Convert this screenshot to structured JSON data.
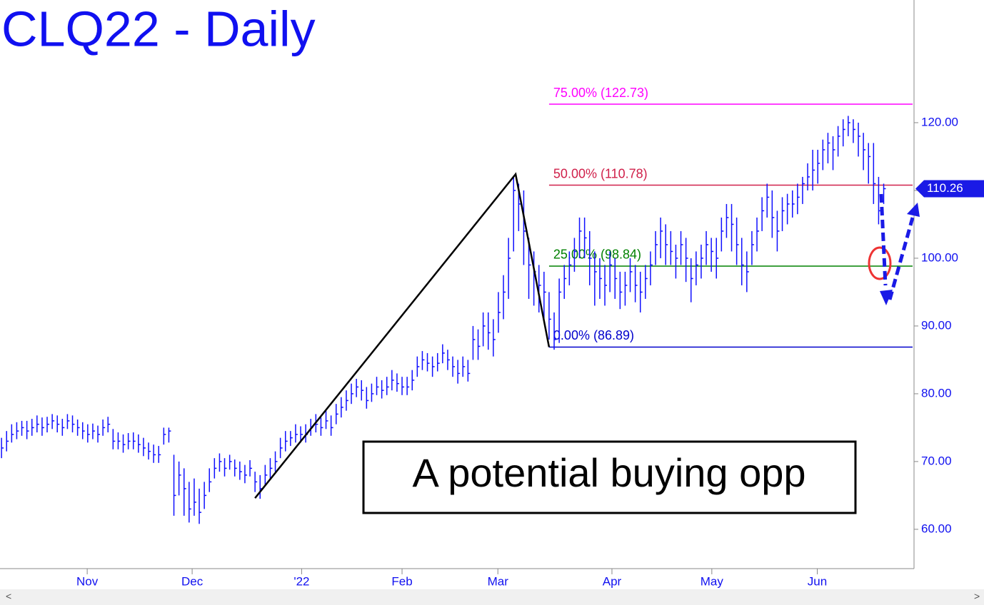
{
  "chart_data": {
    "type": "ohlc",
    "title": "CLQ22 - Daily",
    "annotation": "A potential buying opp",
    "color": "#1010ff",
    "ylim": [
      54.2,
      138.1
    ],
    "yticks": [
      {
        "value": 60,
        "label": "60.00"
      },
      {
        "value": 70,
        "label": "70.00"
      },
      {
        "value": 80,
        "label": "80.00"
      },
      {
        "value": 90,
        "label": "90.00"
      },
      {
        "value": 100,
        "label": "100.00"
      },
      {
        "value": 110,
        "label": "110.00"
      },
      {
        "value": 120,
        "label": "120.00"
      }
    ],
    "xlim": [
      -0.3,
      179.7
    ],
    "xticks": [
      {
        "value": 16.9,
        "label": "Nov"
      },
      {
        "value": 37.6,
        "label": "Dec"
      },
      {
        "value": 59.2,
        "label": "'22"
      },
      {
        "value": 79,
        "label": "Feb"
      },
      {
        "value": 97.9,
        "label": "Mar"
      },
      {
        "value": 120.4,
        "label": "Apr"
      },
      {
        "value": 140.1,
        "label": "May"
      },
      {
        "value": 160.9,
        "label": "Jun"
      }
    ],
    "high": [
      73.5,
      74.5,
      75.5,
      75.8,
      76,
      76,
      76.3,
      76.8,
      76.5,
      76.6,
      77,
      76.8,
      76.3,
      77,
      76.8,
      76.2,
      75.8,
      75.5,
      75.6,
      75.3,
      76.2,
      76.6,
      74.8,
      74.3,
      74,
      74.2,
      74.3,
      74,
      73.5,
      72.8,
      72.5,
      72.3,
      75,
      75,
      71,
      70,
      69,
      67,
      67.5,
      66,
      67,
      69,
      70.5,
      71.2,
      70.5,
      71,
      70.3,
      70,
      69.5,
      70.2,
      68.5,
      68,
      69.5,
      70.5,
      71.5,
      73.5,
      74.5,
      74.5,
      75.5,
      75.2,
      75.5,
      76.3,
      77,
      76.5,
      77.5,
      76.8,
      78.5,
      79.5,
      80.5,
      81.5,
      82.2,
      82,
      81,
      81.5,
      82.5,
      82,
      82.5,
      83.5,
      83,
      82.5,
      82.5,
      83.5,
      85.5,
      86.3,
      86,
      85.5,
      86,
      87.3,
      86.5,
      85.5,
      85,
      85.5,
      85,
      90,
      89.5,
      92,
      92,
      91,
      95,
      97.5,
      103,
      112,
      111,
      110,
      103,
      101,
      99,
      98,
      95,
      92,
      97,
      99,
      101,
      103,
      106,
      106,
      104,
      101,
      100,
      99,
      101,
      100,
      98,
      98,
      100,
      99,
      98,
      99,
      101,
      104,
      106,
      105,
      104,
      102,
      104,
      103,
      100,
      101,
      102,
      104,
      103,
      103,
      106,
      108,
      108,
      106,
      103,
      101,
      104,
      106,
      109,
      111,
      110,
      107,
      109,
      109.5,
      110,
      111,
      112,
      114,
      116,
      116,
      117.5,
      118.5,
      118,
      119.5,
      120.5,
      121,
      120.5,
      120,
      118.5,
      117,
      117,
      112,
      111
    ],
    "low": [
      70.5,
      71.5,
      72.8,
      73.3,
      73.8,
      73.3,
      73.8,
      74.3,
      73.8,
      74.3,
      74.8,
      74.3,
      73.8,
      74.8,
      74.3,
      73.8,
      73.3,
      72.8,
      73.3,
      72.8,
      73.8,
      74.3,
      71.8,
      71.8,
      71.3,
      71.8,
      71.8,
      71.3,
      70.8,
      70.3,
      69.8,
      69.8,
      72.5,
      72.8,
      62,
      65,
      62,
      61,
      62,
      60.8,
      63,
      65.5,
      67.5,
      68.5,
      67.8,
      68.8,
      67.8,
      67.3,
      66.8,
      67.8,
      65.5,
      64.5,
      66.5,
      67.5,
      68.5,
      70.5,
      71.5,
      72.3,
      72.8,
      72.8,
      72.8,
      73.8,
      74.3,
      73.8,
      74.8,
      73.8,
      75.5,
      76.5,
      77.5,
      78.5,
      79.5,
      79,
      77.8,
      78.8,
      79.8,
      79.3,
      79.8,
      80.5,
      80.3,
      79.8,
      79.8,
      80.5,
      82.5,
      83.5,
      83.3,
      82.5,
      83.3,
      84.5,
      83.5,
      82.5,
      81.5,
      82.5,
      81.8,
      85,
      85,
      87,
      86.5,
      85.5,
      89,
      91,
      94,
      101,
      104,
      99,
      94,
      93,
      92,
      91,
      88,
      86.5,
      87.5,
      94,
      96,
      98,
      100,
      100,
      96,
      93,
      94,
      93,
      95,
      94,
      92.5,
      93,
      95,
      93.5,
      92,
      94,
      96,
      99,
      100,
      99,
      99,
      97,
      99,
      96.5,
      93.5,
      96,
      97,
      99,
      98,
      97,
      101,
      103,
      101,
      99,
      96,
      95,
      99,
      101,
      104,
      106,
      103,
      101,
      104,
      105,
      106,
      106.5,
      108,
      110,
      110,
      111,
      113,
      114,
      113,
      115,
      116.5,
      118,
      117,
      115,
      113,
      111,
      108,
      105,
      108
    ],
    "close": [
      72,
      73,
      74,
      74.5,
      75,
      74.5,
      75,
      75.5,
      75,
      75.5,
      76,
      75.5,
      75,
      76,
      75.5,
      75,
      74.5,
      74,
      74.5,
      74,
      75,
      75.5,
      73,
      73,
      72.5,
      73,
      73,
      72.5,
      72,
      71.5,
      71,
      71,
      74,
      74.5,
      65,
      68,
      66,
      63,
      64,
      62.5,
      65,
      67,
      69,
      70,
      69,
      70,
      69,
      68.5,
      68,
      69,
      67,
      66,
      68,
      69,
      70,
      72,
      73,
      73.5,
      74,
      74,
      74,
      75,
      75.5,
      75,
      76,
      75,
      77,
      78,
      79,
      80,
      81,
      80.5,
      79,
      80,
      81,
      80.5,
      81,
      82,
      81.5,
      81,
      81,
      82,
      84,
      85,
      84.5,
      84,
      84.5,
      86,
      85,
      84,
      83,
      84,
      83,
      88,
      87,
      90,
      89,
      88,
      92,
      95,
      100,
      110,
      108,
      104,
      99,
      98,
      96,
      95,
      91,
      88,
      95,
      97,
      99,
      101,
      104,
      103,
      100,
      98,
      97,
      96,
      99,
      97,
      95,
      96,
      98,
      96,
      95,
      97,
      99,
      102,
      104,
      102,
      101,
      100,
      102,
      100,
      97,
      99,
      100,
      102,
      101,
      100,
      104,
      106,
      105,
      102,
      99,
      98,
      102,
      104,
      107,
      109,
      106,
      104,
      107,
      108,
      108,
      109,
      111,
      112,
      113,
      114,
      116,
      117,
      116,
      118,
      119,
      120,
      119,
      118,
      116,
      115,
      111,
      107,
      110.26
    ],
    "swing_points": [
      {
        "x": 50,
        "y": 64.6
      },
      {
        "x": 101.4,
        "y": 112.4
      },
      {
        "x": 108,
        "y": 86.89
      }
    ],
    "fib_levels": [
      {
        "label": "75.00% (122.73)",
        "value": 122.73,
        "color": "#ff00ff"
      },
      {
        "label": "50.00% (110.78)",
        "value": 110.78,
        "color": "#d0204a"
      },
      {
        "label": "25.00% (98.84)",
        "value": 98.84,
        "color": "#008000"
      },
      {
        "label": "0.00% (86.89)",
        "value": 86.89,
        "color": "#0000cc"
      }
    ]
  }
}
